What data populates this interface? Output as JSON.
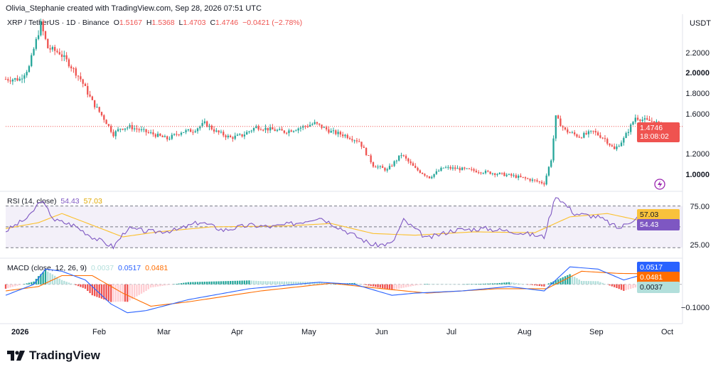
{
  "header": {
    "text": "Olivia_Stephanie created with TradingView.com, Sep 28, 2026 07:51 UTC"
  },
  "price_pane": {
    "symbol": "XRP / TetherUS · 1D · Binance",
    "o_label": "O",
    "o": "1.5167",
    "h_label": "H",
    "h": "1.5368",
    "l_label": "L",
    "l": "1.4703",
    "c_label": "C",
    "c": "1.4746",
    "change": "−0.0421 (−2.78%)",
    "currency": "USDT",
    "last_price": "1.4746",
    "countdown": "18:08:02",
    "y_ticks": [
      "2.2000",
      "2.0000",
      "1.8000",
      "1.6000",
      "1.2000",
      "1.0000"
    ]
  },
  "rsi_pane": {
    "label": "RSI (14, close)",
    "rsi_value": "54.43",
    "ma_value": "57.03",
    "y_ticks": [
      "75.00",
      "25.00"
    ]
  },
  "macd_pane": {
    "label": "MACD (close, 12, 26, 9)",
    "hist_value": "0.0037",
    "macd_value": "0.0517",
    "signal_value": "0.0481",
    "y_ticks": [
      "−0.1000"
    ]
  },
  "x_axis": {
    "months": [
      "2026",
      "Feb",
      "Mar",
      "Apr",
      "May",
      "Jun",
      "Jul",
      "Aug",
      "Sep",
      "Oct"
    ]
  },
  "brand": {
    "name": "TradingView"
  },
  "colors": {
    "up": "#26a69a",
    "down": "#ef5350",
    "rsi": "#7e57c2",
    "rsi_ma": "#fbc02d",
    "macd": "#2962ff",
    "signal": "#ff6d00"
  },
  "chart_data": [
    {
      "type": "candlestick",
      "title": "XRP / TetherUS · 1D · Binance",
      "ylabel": "USDT",
      "ylim": [
        0.95,
        2.4
      ],
      "x_start": "2025-12-22",
      "x_end": "2026-09-28",
      "anchor_closes": [
        [
          "2025-12-22",
          1.87
        ],
        [
          "2025-12-28",
          1.87
        ],
        [
          "2026-01-01",
          1.97
        ],
        [
          "2026-01-03",
          2.12
        ],
        [
          "2026-01-06",
          2.33
        ],
        [
          "2026-01-09",
          2.13
        ],
        [
          "2026-01-14",
          2.09
        ],
        [
          "2026-01-18",
          2.0
        ],
        [
          "2026-01-23",
          1.87
        ],
        [
          "2026-01-28",
          1.68
        ],
        [
          "2026-02-02",
          1.54
        ],
        [
          "2026-02-06",
          1.41
        ],
        [
          "2026-02-09",
          1.46
        ],
        [
          "2026-02-13",
          1.47
        ],
        [
          "2026-02-18",
          1.44
        ],
        [
          "2026-02-23",
          1.41
        ],
        [
          "2026-03-01",
          1.37
        ],
        [
          "2026-03-07",
          1.43
        ],
        [
          "2026-03-12",
          1.44
        ],
        [
          "2026-03-17",
          1.5
        ],
        [
          "2026-03-22",
          1.43
        ],
        [
          "2026-03-28",
          1.38
        ],
        [
          "2026-04-02",
          1.4
        ],
        [
          "2026-04-08",
          1.47
        ],
        [
          "2026-04-14",
          1.45
        ],
        [
          "2026-04-20",
          1.43
        ],
        [
          "2026-04-26",
          1.46
        ],
        [
          "2026-05-03",
          1.5
        ],
        [
          "2026-05-10",
          1.43
        ],
        [
          "2026-05-16",
          1.4
        ],
        [
          "2026-05-22",
          1.35
        ],
        [
          "2026-05-28",
          1.15
        ],
        [
          "2026-06-03",
          1.11
        ],
        [
          "2026-06-09",
          1.24
        ],
        [
          "2026-06-15",
          1.12
        ],
        [
          "2026-06-21",
          1.05
        ],
        [
          "2026-06-27",
          1.13
        ],
        [
          "2026-07-04",
          1.12
        ],
        [
          "2026-07-12",
          1.1
        ],
        [
          "2026-07-20",
          1.08
        ],
        [
          "2026-07-27",
          1.06
        ],
        [
          "2026-08-03",
          1.03
        ],
        [
          "2026-08-09",
          1.0
        ],
        [
          "2026-08-12",
          1.2
        ],
        [
          "2026-08-14",
          1.55
        ],
        [
          "2026-08-18",
          1.44
        ],
        [
          "2026-08-24",
          1.39
        ],
        [
          "2026-08-30",
          1.43
        ],
        [
          "2026-09-04",
          1.37
        ],
        [
          "2026-09-08",
          1.28
        ],
        [
          "2026-09-12",
          1.37
        ],
        [
          "2026-09-17",
          1.55
        ],
        [
          "2026-09-22",
          1.52
        ],
        [
          "2026-09-25",
          1.52
        ],
        [
          "2026-09-28",
          1.4746
        ]
      ]
    },
    {
      "type": "line",
      "title": "RSI (14, close)",
      "ylim": [
        15,
        90
      ],
      "reference_lines": [
        75,
        50,
        25
      ],
      "series": [
        {
          "name": "RSI (14, close)",
          "points": [
            [
              "2025-12-22",
              45
            ],
            [
              "2026-01-01",
              62
            ],
            [
              "2026-01-06",
              82
            ],
            [
              "2026-01-12",
              58
            ],
            [
              "2026-01-20",
              52
            ],
            [
              "2026-01-28",
              38
            ],
            [
              "2026-02-06",
              26
            ],
            [
              "2026-02-12",
              48
            ],
            [
              "2026-02-22",
              44
            ],
            [
              "2026-03-05",
              46
            ],
            [
              "2026-03-15",
              56
            ],
            [
              "2026-03-25",
              46
            ],
            [
              "2026-04-05",
              52
            ],
            [
              "2026-04-15",
              50
            ],
            [
              "2026-04-26",
              55
            ],
            [
              "2026-05-05",
              62
            ],
            [
              "2026-05-15",
              47
            ],
            [
              "2026-05-28",
              28
            ],
            [
              "2026-06-05",
              30
            ],
            [
              "2026-06-10",
              58
            ],
            [
              "2026-06-20",
              36
            ],
            [
              "2026-07-01",
              46
            ],
            [
              "2026-07-15",
              48
            ],
            [
              "2026-07-28",
              44
            ],
            [
              "2026-08-09",
              38
            ],
            [
              "2026-08-14",
              88
            ],
            [
              "2026-08-22",
              66
            ],
            [
              "2026-09-01",
              62
            ],
            [
              "2026-09-10",
              48
            ],
            [
              "2026-09-20",
              66
            ],
            [
              "2026-09-28",
              54.43
            ]
          ]
        },
        {
          "name": "RSI-based MA",
          "points": [
            [
              "2025-12-22",
              48
            ],
            [
              "2026-01-05",
              55
            ],
            [
              "2026-01-15",
              66
            ],
            [
              "2026-01-28",
              52
            ],
            [
              "2026-02-10",
              38
            ],
            [
              "2026-02-25",
              44
            ],
            [
              "2026-03-20",
              50
            ],
            [
              "2026-04-20",
              51
            ],
            [
              "2026-05-10",
              54
            ],
            [
              "2026-05-28",
              42
            ],
            [
              "2026-06-15",
              40
            ],
            [
              "2026-07-10",
              44
            ],
            [
              "2026-08-05",
              43
            ],
            [
              "2026-08-20",
              62
            ],
            [
              "2026-09-05",
              66
            ],
            [
              "2026-09-20",
              57
            ],
            [
              "2026-09-28",
              57.03
            ]
          ]
        }
      ]
    },
    {
      "type": "line",
      "title": "MACD (close, 12, 26, 9)",
      "ylim": [
        -0.17,
        0.11
      ],
      "reference_lines": [
        0
      ],
      "series": [
        {
          "name": "MACD",
          "points": [
            [
              "2025-12-22",
              -0.05
            ],
            [
              "2026-01-03",
              0.0
            ],
            [
              "2026-01-08",
              0.07
            ],
            [
              "2026-01-15",
              0.06
            ],
            [
              "2026-01-25",
              0.02
            ],
            [
              "2026-02-05",
              -0.09
            ],
            [
              "2026-02-12",
              -0.13
            ],
            [
              "2026-02-20",
              -0.12
            ],
            [
              "2026-03-10",
              -0.07
            ],
            [
              "2026-04-05",
              -0.02
            ],
            [
              "2026-05-05",
              0.01
            ],
            [
              "2026-05-20",
              0.0
            ],
            [
              "2026-06-05",
              -0.05
            ],
            [
              "2026-06-15",
              -0.04
            ],
            [
              "2026-07-05",
              -0.03
            ],
            [
              "2026-07-25",
              -0.01
            ],
            [
              "2026-08-09",
              -0.03
            ],
            [
              "2026-08-20",
              0.08
            ],
            [
              "2026-09-01",
              0.07
            ],
            [
              "2026-09-12",
              0.02
            ],
            [
              "2026-09-22",
              0.05
            ],
            [
              "2026-09-28",
              0.0517
            ]
          ]
        },
        {
          "name": "Signal",
          "points": [
            [
              "2025-12-22",
              -0.03
            ],
            [
              "2026-01-05",
              -0.01
            ],
            [
              "2026-01-15",
              0.04
            ],
            [
              "2026-01-28",
              0.04
            ],
            [
              "2026-02-10",
              -0.04
            ],
            [
              "2026-02-22",
              -0.1
            ],
            [
              "2026-03-10",
              -0.08
            ],
            [
              "2026-04-10",
              -0.03
            ],
            [
              "2026-05-10",
              0.005
            ],
            [
              "2026-06-01",
              -0.02
            ],
            [
              "2026-06-20",
              -0.04
            ],
            [
              "2026-07-20",
              -0.02
            ],
            [
              "2026-08-10",
              -0.02
            ],
            [
              "2026-08-25",
              0.06
            ],
            [
              "2026-09-10",
              0.05
            ],
            [
              "2026-09-28",
              0.0481
            ]
          ]
        }
      ]
    }
  ]
}
